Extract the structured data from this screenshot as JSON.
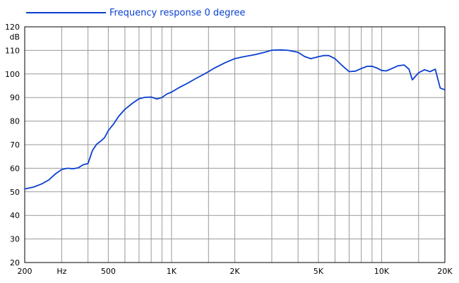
{
  "chart_data": {
    "type": "line",
    "ylabel": "dB",
    "xlabel": "",
    "x_scale": "log",
    "xlim": [
      200,
      20000
    ],
    "ylim": [
      20,
      120
    ],
    "grid": true,
    "legend_position": "top-left",
    "x_ticks": [
      {
        "value": 200,
        "label": "200"
      },
      {
        "value": 300,
        "label": "Hz"
      },
      {
        "value": 500,
        "label": "500"
      },
      {
        "value": 1000,
        "label": "1K"
      },
      {
        "value": 2000,
        "label": "2K"
      },
      {
        "value": 5000,
        "label": "5K"
      },
      {
        "value": 10000,
        "label": "10K"
      },
      {
        "value": 20000,
        "label": "20K"
      }
    ],
    "x_gridlines": [
      200,
      300,
      400,
      500,
      600,
      700,
      800,
      900,
      1000,
      1500,
      2000,
      3000,
      4000,
      5000,
      6000,
      7000,
      8000,
      9000,
      10000,
      15000,
      20000
    ],
    "y_ticks": [
      20,
      30,
      40,
      50,
      60,
      70,
      80,
      90,
      100,
      110,
      120
    ],
    "series": [
      {
        "name": "Frequency response 0 degree",
        "color": "#0a3fd0",
        "x": [
          200,
          220,
          240,
          260,
          280,
          300,
          320,
          340,
          360,
          380,
          400,
          420,
          440,
          460,
          480,
          500,
          530,
          560,
          600,
          650,
          700,
          750,
          800,
          850,
          900,
          950,
          1000,
          1100,
          1200,
          1300,
          1400,
          1500,
          1600,
          1800,
          2000,
          2200,
          2500,
          2800,
          3000,
          3300,
          3600,
          4000,
          4300,
          4600,
          5000,
          5300,
          5600,
          6000,
          6500,
          7000,
          7500,
          8000,
          8500,
          9000,
          9500,
          10000,
          10500,
          11000,
          12000,
          12800,
          13500,
          14000,
          15000,
          16000,
          17000,
          18000,
          19000,
          20000
        ],
        "values": [
          51.2,
          52,
          53.3,
          55,
          57.6,
          59.5,
          60,
          59.8,
          60.2,
          61.5,
          62,
          67.5,
          70.2,
          71.5,
          73,
          76,
          78.8,
          82,
          85,
          87.5,
          89.5,
          90.1,
          90.2,
          89.4,
          90,
          91.5,
          92.3,
          94.5,
          96.2,
          98,
          99.5,
          101,
          102.5,
          104.8,
          106.5,
          107.3,
          108.2,
          109.3,
          110.1,
          110.2,
          110,
          109.2,
          107.4,
          106.5,
          107.3,
          107.8,
          107.8,
          106.5,
          103.5,
          101,
          101.2,
          102.3,
          103.2,
          103.3,
          102.5,
          101.5,
          101.3,
          102,
          103.5,
          103.8,
          102,
          97.5,
          100.5,
          101.8,
          101,
          102,
          94,
          93.3
        ]
      }
    ]
  }
}
